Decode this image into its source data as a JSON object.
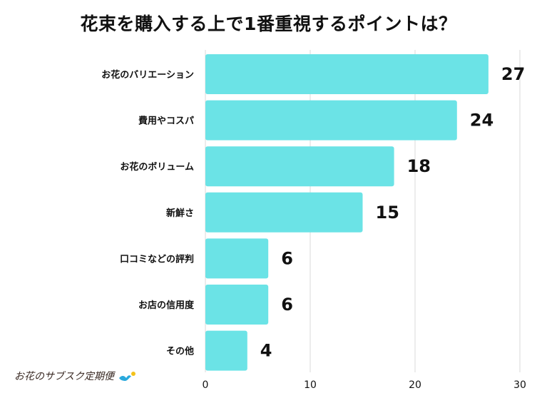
{
  "chart_data": {
    "type": "bar",
    "orientation": "horizontal",
    "title": "花束を購入する上で1番重視するポイントは？",
    "categories": [
      "お花のバリエーション",
      "費用やコスパ",
      "お花のボリューム",
      "新鮮さ",
      "口コミなどの評判",
      "お店の信用度",
      "その他"
    ],
    "values": [
      27,
      24,
      18,
      15,
      6,
      6,
      4
    ],
    "xlim": [
      0,
      30
    ],
    "xticks": [
      0,
      10,
      20,
      30
    ],
    "xlabel": "",
    "ylabel": "",
    "grid": true,
    "bar_color": "#6be3e6",
    "grid_color": "#d9d9d9"
  },
  "brand": {
    "text": "お花のサブスク定期便",
    "icon": "bird-and-flower-icon",
    "text_color": "#3a2a24",
    "icon_colors": [
      "#2aa9dc",
      "#f3c21b"
    ]
  }
}
